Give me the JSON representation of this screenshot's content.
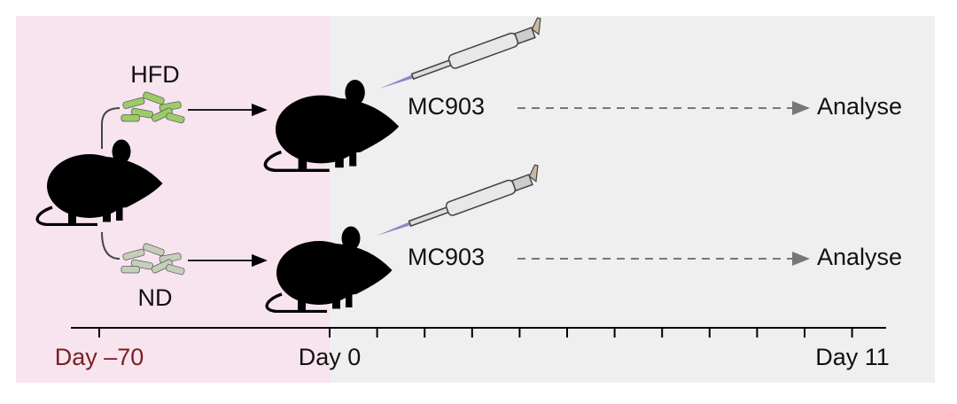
{
  "groups": [
    {
      "diet": "HFD",
      "treatment": "MC903",
      "outcome": "Analyse"
    },
    {
      "diet": "ND",
      "treatment": "MC903",
      "outcome": "Analyse"
    }
  ],
  "timeline": {
    "labels": [
      "Day –70",
      "Day 0",
      "Day 11"
    ]
  }
}
